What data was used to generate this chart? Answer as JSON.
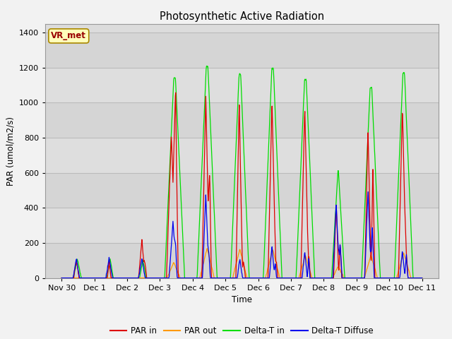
{
  "title": "Photosynthetic Active Radiation",
  "ylabel": "PAR (umol/m2/s)",
  "xlabel": "Time",
  "ylim": [
    0,
    1450
  ],
  "yticks": [
    0,
    200,
    400,
    600,
    800,
    1000,
    1200,
    1400
  ],
  "xtick_labels": [
    "Nov 30",
    "Dec 1",
    "Dec 2",
    "Dec 3",
    "Dec 4",
    "Dec 5",
    "Dec 6",
    "Dec 7",
    "Dec 8",
    "Dec 9",
    "Dec 10",
    "Dec 11"
  ],
  "bg_color": "#dcdcdc",
  "grid_color": "#c8c8c8",
  "plot_bg": "#dcdcdc",
  "colors": {
    "par_in": "#dd0000",
    "par_out": "#ff9900",
    "delta_t_in": "#00dd00",
    "delta_t_diffuse": "#0000ee"
  },
  "legend_labels": [
    "PAR in",
    "PAR out",
    "Delta-T in",
    "Delta-T Diffuse"
  ],
  "vr_met_label": "VR_met",
  "vr_met_color": "#990000",
  "vr_met_bg": "#ffffbb",
  "vr_met_border": "#aa8800"
}
